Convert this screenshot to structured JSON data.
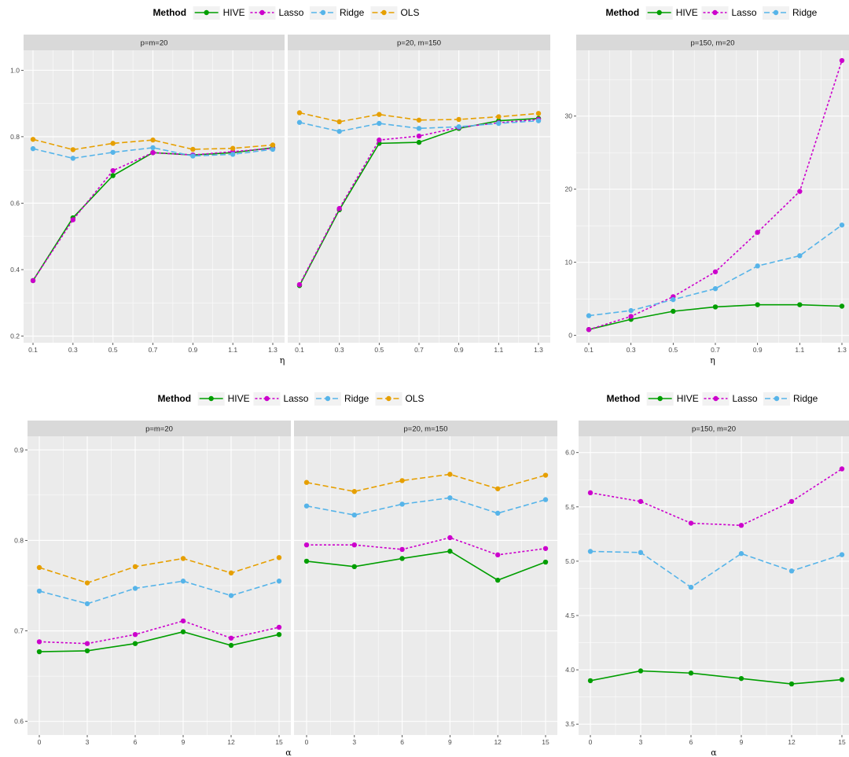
{
  "colors": {
    "HIVE": "#009E00",
    "Lasso": "#CC00CC",
    "Ridge": "#56B4E9",
    "OLS": "#E69F00",
    "panel_bg": "#EBEBEB",
    "strip_bg": "#D9D9D9",
    "grid": "#FFFFFF"
  },
  "legend": {
    "title": "Method"
  },
  "chart_data": [
    {
      "type": "line",
      "row": "top",
      "facet": "p=m=20",
      "legend": [
        "HIVE",
        "Lasso",
        "Ridge",
        "OLS"
      ],
      "x": [
        0.1,
        0.3,
        0.5,
        0.7,
        0.9,
        1.1,
        1.3
      ],
      "x_tick_labels": [
        "0.1",
        "0.3",
        "0.5",
        "0.7",
        "0.9",
        "1.1",
        "1.3"
      ],
      "xlabel": "",
      "ylim": [
        0.18,
        1.06
      ],
      "y_ticks": [
        0.2,
        0.4,
        0.6,
        0.8,
        1.0
      ],
      "y_tick_labels": [
        "0.2",
        "0.4",
        "0.6",
        "0.8",
        "1.0"
      ],
      "series": [
        {
          "name": "HIVE",
          "values": [
            0.367,
            0.556,
            0.683,
            0.752,
            0.745,
            0.752,
            0.767
          ]
        },
        {
          "name": "Lasso",
          "values": [
            0.367,
            0.55,
            0.698,
            0.752,
            0.745,
            0.755,
            0.765
          ]
        },
        {
          "name": "Ridge",
          "values": [
            0.764,
            0.735,
            0.753,
            0.767,
            0.742,
            0.747,
            0.762
          ]
        },
        {
          "name": "OLS",
          "values": [
            0.792,
            0.761,
            0.78,
            0.79,
            0.762,
            0.765,
            0.775
          ]
        }
      ]
    },
    {
      "type": "line",
      "row": "top",
      "facet": "p=20, m=150",
      "legend": [
        "HIVE",
        "Lasso",
        "Ridge",
        "OLS"
      ],
      "x": [
        0.1,
        0.3,
        0.5,
        0.7,
        0.9,
        1.1,
        1.3
      ],
      "x_tick_labels": [
        "0.1",
        "0.3",
        "0.5",
        "0.7",
        "0.9",
        "1.1",
        "1.3"
      ],
      "xlabel": "η",
      "ylim": [
        0.18,
        1.06
      ],
      "y_ticks": [],
      "y_tick_labels": [],
      "series": [
        {
          "name": "HIVE",
          "values": [
            0.352,
            0.58,
            0.78,
            0.783,
            0.825,
            0.848,
            0.855
          ]
        },
        {
          "name": "Lasso",
          "values": [
            0.355,
            0.584,
            0.79,
            0.802,
            0.828,
            0.842,
            0.852
          ]
        },
        {
          "name": "Ridge",
          "values": [
            0.843,
            0.816,
            0.84,
            0.825,
            0.83,
            0.84,
            0.848
          ]
        },
        {
          "name": "OLS",
          "values": [
            0.872,
            0.845,
            0.867,
            0.85,
            0.852,
            0.86,
            0.87
          ]
        }
      ]
    },
    {
      "type": "line",
      "row": "top",
      "facet": "p=150, m=20",
      "legend": [
        "HIVE",
        "Lasso",
        "Ridge"
      ],
      "x": [
        0.1,
        0.3,
        0.5,
        0.7,
        0.9,
        1.1,
        1.3
      ],
      "x_tick_labels": [
        "0.1",
        "0.3",
        "0.5",
        "0.7",
        "0.9",
        "1.1",
        "1.3"
      ],
      "xlabel": "η",
      "ylim": [
        -1,
        39
      ],
      "y_ticks": [
        0,
        10,
        20,
        30
      ],
      "y_tick_labels": [
        "0",
        "10",
        "20",
        "30"
      ],
      "series": [
        {
          "name": "HIVE",
          "values": [
            0.8,
            2.2,
            3.3,
            3.9,
            4.2,
            4.2,
            4.0
          ]
        },
        {
          "name": "Lasso",
          "values": [
            0.8,
            2.6,
            5.3,
            8.7,
            14.1,
            19.7,
            37.6
          ]
        },
        {
          "name": "Ridge",
          "values": [
            2.7,
            3.4,
            4.9,
            6.4,
            9.5,
            10.9,
            15.1
          ]
        }
      ]
    },
    {
      "type": "line",
      "row": "bottom",
      "facet": "p=m=20",
      "legend": [
        "HIVE",
        "Lasso",
        "Ridge",
        "OLS"
      ],
      "x": [
        0,
        3,
        6,
        9,
        12,
        15
      ],
      "x_tick_labels": [
        "0",
        "3",
        "6",
        "9",
        "12",
        "15"
      ],
      "xlabel": "",
      "ylim": [
        0.585,
        0.915
      ],
      "y_ticks": [
        0.6,
        0.7,
        0.8,
        0.9
      ],
      "y_tick_labels": [
        "0.6",
        "0.7",
        "0.8",
        "0.9"
      ],
      "series": [
        {
          "name": "HIVE",
          "values": [
            0.677,
            0.678,
            0.686,
            0.699,
            0.684,
            0.696
          ]
        },
        {
          "name": "Lasso",
          "values": [
            0.688,
            0.686,
            0.696,
            0.711,
            0.692,
            0.704
          ]
        },
        {
          "name": "Ridge",
          "values": [
            0.744,
            0.73,
            0.747,
            0.755,
            0.739,
            0.755
          ]
        },
        {
          "name": "OLS",
          "values": [
            0.77,
            0.753,
            0.771,
            0.78,
            0.764,
            0.781
          ]
        }
      ]
    },
    {
      "type": "line",
      "row": "bottom",
      "facet": "p=20, m=150",
      "legend": [
        "HIVE",
        "Lasso",
        "Ridge",
        "OLS"
      ],
      "x": [
        0,
        3,
        6,
        9,
        12,
        15
      ],
      "x_tick_labels": [
        "0",
        "3",
        "6",
        "9",
        "12",
        "15"
      ],
      "xlabel": "α",
      "ylim": [
        0.585,
        0.915
      ],
      "y_ticks": [],
      "y_tick_labels": [],
      "series": [
        {
          "name": "HIVE",
          "values": [
            0.777,
            0.771,
            0.78,
            0.788,
            0.756,
            0.776
          ]
        },
        {
          "name": "Lasso",
          "values": [
            0.795,
            0.795,
            0.79,
            0.803,
            0.784,
            0.791
          ]
        },
        {
          "name": "Ridge",
          "values": [
            0.838,
            0.828,
            0.84,
            0.847,
            0.83,
            0.845
          ]
        },
        {
          "name": "OLS",
          "values": [
            0.864,
            0.854,
            0.866,
            0.873,
            0.857,
            0.872
          ]
        }
      ]
    },
    {
      "type": "line",
      "row": "bottom",
      "facet": "p=150, m=20",
      "legend": [
        "HIVE",
        "Lasso",
        "Ridge"
      ],
      "x": [
        0,
        3,
        6,
        9,
        12,
        15
      ],
      "x_tick_labels": [
        "0",
        "3",
        "6",
        "9",
        "12",
        "15"
      ],
      "xlabel": "α",
      "ylim": [
        3.4,
        6.15
      ],
      "y_ticks": [
        3.5,
        4.0,
        4.5,
        5.0,
        5.5,
        6.0
      ],
      "y_tick_labels": [
        "3.5",
        "4.0",
        "4.5",
        "5.0",
        "5.5",
        "6.0"
      ],
      "series": [
        {
          "name": "HIVE",
          "values": [
            3.9,
            3.99,
            3.97,
            3.92,
            3.87,
            3.91
          ]
        },
        {
          "name": "Lasso",
          "values": [
            5.63,
            5.55,
            5.35,
            5.33,
            5.55,
            5.85
          ]
        },
        {
          "name": "Ridge",
          "values": [
            5.09,
            5.08,
            4.76,
            5.07,
            4.91,
            5.06
          ]
        }
      ]
    }
  ]
}
